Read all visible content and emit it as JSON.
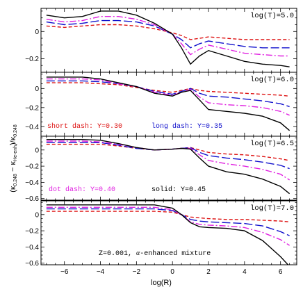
{
  "chart_data": {
    "type": "line",
    "xlabel": "log(R)",
    "ylabel": "(κ0.248 − κHe-enh)/κ0.248",
    "ylabel_parts": {
      "open": "(",
      "k1": "κ",
      "s1": "0.248",
      "minus": " − ",
      "k2": "κ",
      "s2": "He-enh",
      "close": ")/",
      "k3": "κ",
      "s3": "0.248"
    },
    "xlim": [
      -7.3,
      6.9
    ],
    "x_ticks": [
      -6,
      -4,
      -2,
      0,
      2,
      4,
      6
    ],
    "x_tick_labels": [
      "−6",
      "−4",
      "−2",
      "0",
      "2",
      "4",
      "6"
    ],
    "x": [
      -7,
      -6,
      -5,
      -4,
      -3,
      -2,
      -1,
      0,
      0.5,
      1,
      1.5,
      2,
      3,
      4,
      5,
      6,
      6.5
    ],
    "styles": {
      "Y030": {
        "color": "#dd1111",
        "dash": "5,3"
      },
      "Y035": {
        "color": "#1111cc",
        "dash": "12,4"
      },
      "Y040": {
        "color": "#e020e0",
        "dash": "9,3,2,3"
      },
      "Y045": {
        "color": "#000000",
        "dash": ""
      }
    },
    "annotations": {
      "short": "short dash: Y=0.30",
      "long": "long dash: Y=0.35",
      "dotdash": "dot dash: Y=0.40",
      "solid": "solid: Y=0.45",
      "mixture_a": "Z=0.001, ",
      "mixture_alpha": "α",
      "mixture_b": "-enhanced mixture"
    },
    "panels": [
      {
        "label": "log(T)=5.0",
        "ylim": [
          -0.3,
          0.17
        ],
        "y_ticks": [
          -0.2,
          0,
          0.2
        ],
        "y_tick_labels": [
          "−0.2",
          "0",
          ""
        ],
        "series": [
          {
            "style": "Y030",
            "values": [
              0.04,
              0.03,
              0.04,
              0.05,
              0.05,
              0.04,
              0.02,
              -0.01,
              -0.03,
              -0.06,
              -0.05,
              -0.04,
              -0.05,
              -0.06,
              -0.06,
              -0.06,
              -0.06
            ]
          },
          {
            "style": "Y035",
            "values": [
              0.07,
              0.05,
              0.06,
              0.08,
              0.08,
              0.07,
              0.04,
              -0.02,
              -0.06,
              -0.12,
              -0.09,
              -0.07,
              -0.09,
              -0.11,
              -0.12,
              -0.12,
              -0.12
            ]
          },
          {
            "style": "Y040",
            "values": [
              0.09,
              0.07,
              0.08,
              0.11,
              0.11,
              0.09,
              0.05,
              -0.02,
              -0.09,
              -0.17,
              -0.13,
              -0.1,
              -0.13,
              -0.16,
              -0.17,
              -0.18,
              -0.18
            ]
          },
          {
            "style": "Y045",
            "values": [
              0.12,
              0.1,
              0.11,
              0.15,
              0.15,
              0.12,
              0.06,
              -0.02,
              -0.12,
              -0.24,
              -0.18,
              -0.14,
              -0.18,
              -0.22,
              -0.24,
              -0.25,
              -0.26
            ]
          }
        ]
      },
      {
        "label": "log(T)=6.0",
        "ylim": [
          -0.5,
          0.17
        ],
        "y_ticks": [
          -0.4,
          -0.2,
          0
        ],
        "y_tick_labels": [
          "−0.4",
          "−0.2",
          "0"
        ],
        "series": [
          {
            "style": "Y030",
            "values": [
              0.06,
              0.06,
              0.06,
              0.05,
              0.04,
              0.01,
              -0.02,
              -0.04,
              -0.02,
              0.0,
              -0.02,
              -0.03,
              -0.04,
              -0.05,
              -0.06,
              -0.07,
              -0.08
            ]
          },
          {
            "style": "Y035",
            "values": [
              0.08,
              0.08,
              0.08,
              0.07,
              0.05,
              0.02,
              -0.03,
              -0.06,
              -0.03,
              0.0,
              -0.05,
              -0.08,
              -0.09,
              -0.11,
              -0.13,
              -0.16,
              -0.19
            ]
          },
          {
            "style": "Y040",
            "values": [
              0.1,
              0.1,
              0.1,
              0.09,
              0.05,
              0.02,
              -0.04,
              -0.07,
              -0.04,
              -0.01,
              -0.09,
              -0.15,
              -0.17,
              -0.18,
              -0.2,
              -0.24,
              -0.28
            ]
          },
          {
            "style": "Y045",
            "values": [
              0.12,
              0.12,
              0.12,
              0.1,
              0.06,
              0.02,
              -0.05,
              -0.08,
              -0.04,
              -0.02,
              -0.12,
              -0.22,
              -0.24,
              -0.26,
              -0.29,
              -0.36,
              -0.44
            ]
          }
        ]
      },
      {
        "label": "log(T)=6.5",
        "ylim": [
          -0.62,
          0.17
        ],
        "y_ticks": [
          -0.6,
          -0.4,
          -0.2,
          0
        ],
        "y_tick_labels": [
          "−0.6",
          "−0.4",
          "−0.2",
          "0"
        ],
        "series": [
          {
            "style": "Y030",
            "values": [
              0.07,
              0.07,
              0.07,
              0.07,
              0.05,
              0.02,
              0.0,
              0.01,
              0.02,
              0.03,
              0.0,
              -0.03,
              -0.05,
              -0.06,
              -0.08,
              -0.11,
              -0.13
            ]
          },
          {
            "style": "Y035",
            "values": [
              0.09,
              0.09,
              0.09,
              0.09,
              0.06,
              0.02,
              0.0,
              0.01,
              0.02,
              0.03,
              -0.03,
              -0.07,
              -0.1,
              -0.12,
              -0.15,
              -0.19,
              -0.23
            ]
          },
          {
            "style": "Y040",
            "values": [
              0.11,
              0.11,
              0.11,
              0.1,
              0.07,
              0.03,
              0.0,
              0.01,
              0.02,
              0.02,
              -0.06,
              -0.13,
              -0.17,
              -0.2,
              -0.24,
              -0.3,
              -0.37
            ]
          },
          {
            "style": "Y045",
            "values": [
              0.13,
              0.13,
              0.13,
              0.12,
              0.08,
              0.03,
              0.0,
              0.01,
              0.02,
              0.01,
              -0.1,
              -0.2,
              -0.27,
              -0.3,
              -0.36,
              -0.45,
              -0.54
            ]
          }
        ]
      },
      {
        "label": "log(T)=7.0",
        "ylim": [
          -0.62,
          0.17
        ],
        "y_ticks": [
          -0.6,
          -0.4,
          -0.2,
          0
        ],
        "y_tick_labels": [
          "−0.6",
          "−0.4",
          "−0.2",
          "0"
        ],
        "series": [
          {
            "style": "Y030",
            "values": [
              0.04,
              0.04,
              0.04,
              0.04,
              0.04,
              0.04,
              0.04,
              0.03,
              0.0,
              -0.03,
              -0.04,
              -0.05,
              -0.06,
              -0.06,
              -0.07,
              -0.08,
              -0.09
            ]
          },
          {
            "style": "Y035",
            "values": [
              0.07,
              0.07,
              0.07,
              0.07,
              0.07,
              0.07,
              0.07,
              0.05,
              0.0,
              -0.06,
              -0.08,
              -0.09,
              -0.1,
              -0.11,
              -0.14,
              -0.21,
              -0.26
            ]
          },
          {
            "style": "Y040",
            "values": [
              0.09,
              0.09,
              0.09,
              0.09,
              0.09,
              0.09,
              0.09,
              0.06,
              0.0,
              -0.09,
              -0.12,
              -0.13,
              -0.14,
              -0.16,
              -0.22,
              -0.31,
              -0.38
            ]
          },
          {
            "style": "Y045",
            "values": [
              0.12,
              0.12,
              0.12,
              0.12,
              0.12,
              0.12,
              0.12,
              0.08,
              0.0,
              -0.1,
              -0.15,
              -0.16,
              -0.17,
              -0.2,
              -0.32,
              -0.52,
              -0.64
            ]
          }
        ]
      }
    ]
  }
}
